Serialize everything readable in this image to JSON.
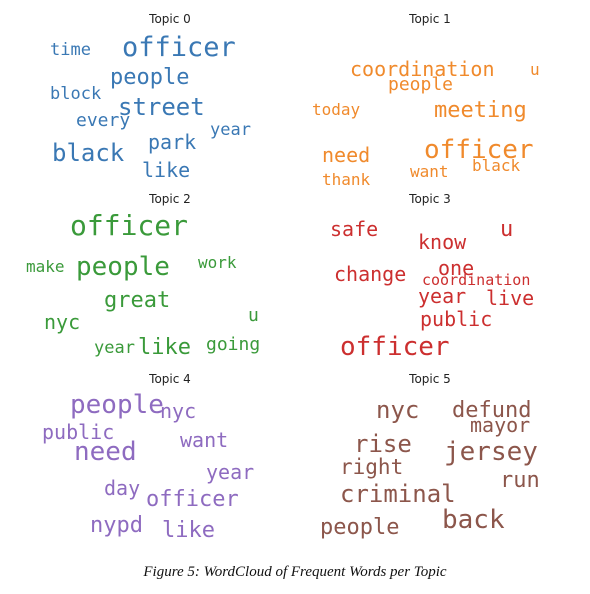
{
  "caption": "Figure 5: WordCloud of Frequent Words per Topic",
  "chart_data": {
    "type": "wordcloud",
    "panels": [
      {
        "title": "Topic 0",
        "color": "#3a78b4",
        "words": [
          "officer",
          "time",
          "people",
          "block",
          "street",
          "every",
          "park",
          "year",
          "black",
          "like"
        ]
      },
      {
        "title": "Topic 1",
        "color": "#f08a2c",
        "words": [
          "coordination",
          "u",
          "people",
          "today",
          "meeting",
          "officer",
          "need",
          "black",
          "want",
          "thank"
        ]
      },
      {
        "title": "Topic 2",
        "color": "#3a9a3a",
        "words": [
          "officer",
          "make",
          "people",
          "work",
          "great",
          "nyc",
          "u",
          "year",
          "like",
          "going"
        ]
      },
      {
        "title": "Topic 3",
        "color": "#cc2f2f",
        "words": [
          "safe",
          "u",
          "know",
          "change",
          "one",
          "coordination",
          "year",
          "live",
          "public",
          "officer"
        ]
      },
      {
        "title": "Topic 4",
        "color": "#8e6bc0",
        "words": [
          "people",
          "nyc",
          "public",
          "want",
          "need",
          "year",
          "day",
          "officer",
          "nypd",
          "like"
        ]
      },
      {
        "title": "Topic 5",
        "color": "#8c564b",
        "words": [
          "nyc",
          "defund",
          "mayor",
          "rise",
          "jersey",
          "right",
          "run",
          "criminal",
          "back",
          "people"
        ]
      }
    ]
  }
}
